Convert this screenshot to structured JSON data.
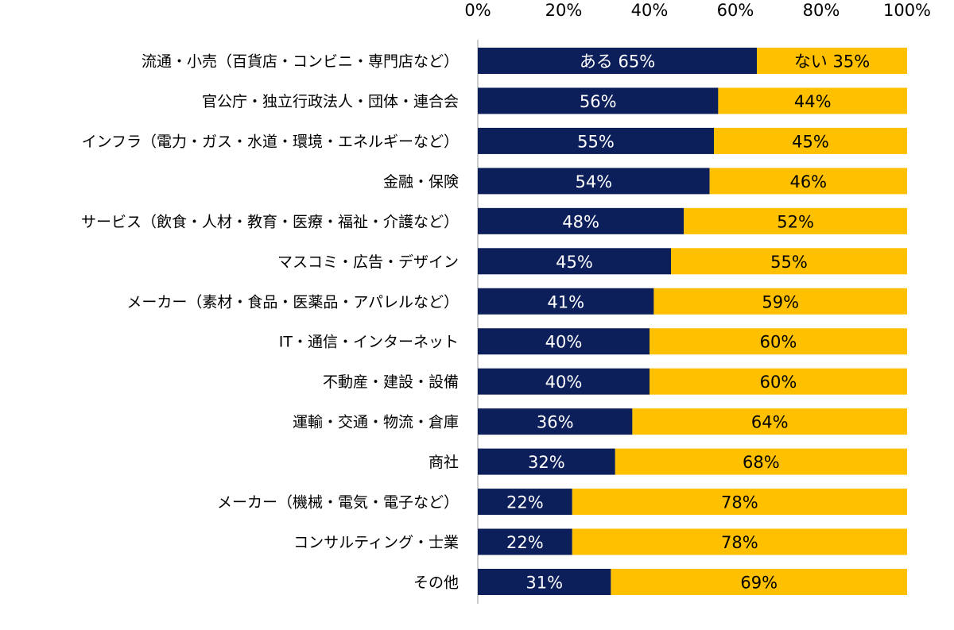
{
  "chart_data": {
    "type": "bar",
    "orientation": "horizontal",
    "stacked": true,
    "xlim": [
      0,
      100
    ],
    "x_ticks": [
      "0%",
      "20%",
      "40%",
      "60%",
      "80%",
      "100%"
    ],
    "grid": false,
    "categories": [
      "流通・小売（百貨店・コンビニ・専門店など）",
      "官公庁・独立行政法人・団体・連合会",
      "インフラ（電力・ガス・水道・環境・エネルギーなど）",
      "金融・保険",
      "サービス（飲食・人材・教育・医療・福祉・介護など）",
      "マスコミ・広告・デザイン",
      "メーカー（素材・食品・医薬品・アパレルなど）",
      "IT・通信・インターネット",
      "不動産・建設・設備",
      "運輸・交通・物流・倉庫",
      "商社",
      "メーカー（機械・電気・電子など）",
      "コンサルティング・士業",
      "その他"
    ],
    "series": [
      {
        "name": "ある",
        "color": "#0c1f5b",
        "label_color": "#ffffff",
        "values": [
          65,
          56,
          55,
          54,
          48,
          45,
          41,
          40,
          40,
          36,
          32,
          22,
          22,
          31
        ]
      },
      {
        "name": "ない",
        "color": "#ffc000",
        "label_color": "#000000",
        "values": [
          35,
          44,
          45,
          46,
          52,
          55,
          59,
          60,
          60,
          64,
          68,
          78,
          78,
          69
        ]
      }
    ]
  }
}
